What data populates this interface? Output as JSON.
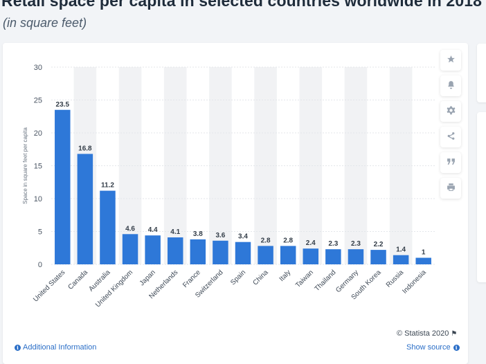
{
  "page": {
    "title": "Retail space per capita in selected countries worldwide in 2018",
    "subtitle": "(in square feet)"
  },
  "toolbar": {
    "icons": [
      "star-icon",
      "bell-icon",
      "gear-icon",
      "share-icon",
      "quote-icon",
      "print-icon"
    ]
  },
  "footer": {
    "credit": "© Statista 2020",
    "additional_info": "Additional Information",
    "show_source": "Show source"
  },
  "colors": {
    "bar": "#2e78d8",
    "band": "#f1f2f4",
    "grid": "#e3e6ea",
    "link": "#2a6ec7"
  },
  "chart_data": {
    "type": "bar",
    "title": "",
    "xlabel": "",
    "ylabel": "Space in square feet per capita",
    "ylim": [
      0,
      30
    ],
    "yticks": [
      0,
      5,
      10,
      15,
      20,
      25,
      30
    ],
    "grid": true,
    "categories": [
      "United States",
      "Canada",
      "Australia",
      "United Kingdom",
      "Japan",
      "Netherlands",
      "France",
      "Switzerland",
      "Spain",
      "China",
      "Italy",
      "Taiwan",
      "Thailand",
      "Germany",
      "South Korea",
      "Russia",
      "Indonesia"
    ],
    "values": [
      23.5,
      16.8,
      11.2,
      4.6,
      4.4,
      4.1,
      3.8,
      3.6,
      3.4,
      2.8,
      2.8,
      2.4,
      2.3,
      2.3,
      2.2,
      1.4,
      1
    ],
    "labels": [
      "23.5",
      "16.8",
      "11.2",
      "4.6",
      "4.4",
      "4.1",
      "3.8",
      "3.6",
      "3.4",
      "2.8",
      "2.8",
      "2.4",
      "2.3",
      "2.3",
      "2.2",
      "1.4",
      "1"
    ]
  }
}
